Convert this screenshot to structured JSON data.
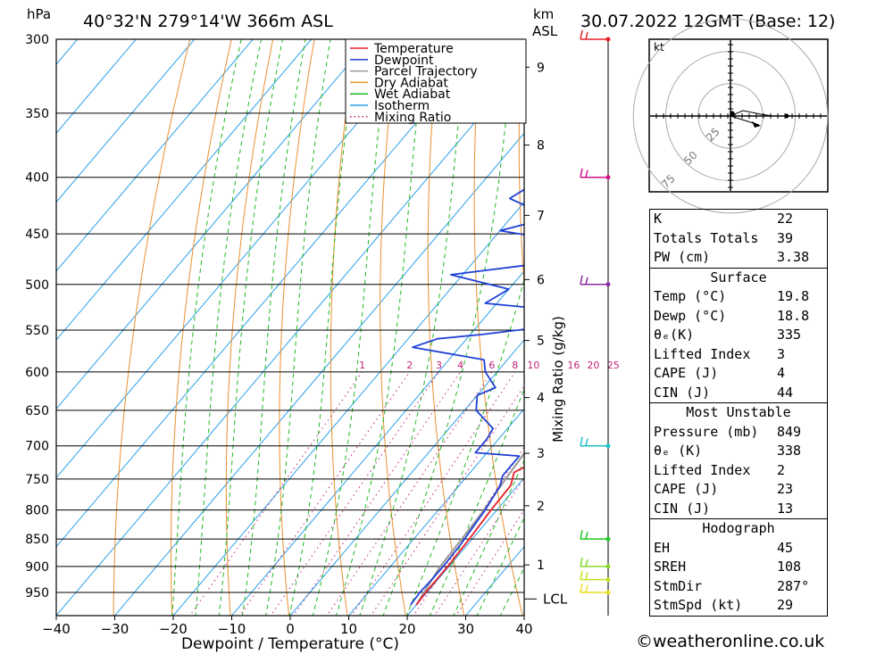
{
  "header": {
    "location": "40°32'N  279°14'W  366m  ASL",
    "datetime": "30.07.2022  12GMT  (Base: 12)",
    "hpa_label": "hPa",
    "km_label": "km",
    "asl_label": "ASL"
  },
  "chart_data": {
    "type": "line",
    "xlabel": "Dewpoint / Temperature (°C)",
    "y2label": "Mixing Ratio (g/kg)",
    "x_ticks": [
      -40,
      -30,
      -20,
      -10,
      0,
      10,
      20,
      30,
      40
    ],
    "x_tick_labels": [
      "−40",
      "−30",
      "−20",
      "−10",
      "0",
      "10",
      "20",
      "30",
      "40"
    ],
    "pressure_ticks": [
      300,
      350,
      400,
      450,
      500,
      550,
      600,
      650,
      700,
      750,
      800,
      850,
      900,
      950
    ],
    "km_ticks": [
      {
        "label": "9",
        "p": 318
      },
      {
        "label": "8",
        "p": 374
      },
      {
        "label": "7",
        "p": 433
      },
      {
        "label": "6",
        "p": 495
      },
      {
        "label": "5",
        "p": 562
      },
      {
        "label": "4",
        "p": 633
      },
      {
        "label": "3",
        "p": 711
      },
      {
        "label": "2",
        "p": 793
      },
      {
        "label": "1",
        "p": 897
      }
    ],
    "lcl_label": "LCL",
    "lcl_p": 963,
    "mixing_ratio_labels": [
      "1",
      "2",
      "3",
      "4",
      "6",
      "8",
      "10",
      "16",
      "20",
      "25"
    ],
    "legend": [
      {
        "name": "Temperature",
        "color": "#e8202a",
        "dash": "solid"
      },
      {
        "name": "Dewpoint",
        "color": "#1f3fd6",
        "dash": "solid"
      },
      {
        "name": "Parcel Trajectory",
        "color": "#999999",
        "dash": "solid"
      },
      {
        "name": "Dry Adiabat",
        "color": "#e89030",
        "dash": "solid"
      },
      {
        "name": "Wet Adiabat",
        "color": "#22b822",
        "dash": "solid"
      },
      {
        "name": "Isotherm",
        "color": "#2aa0e8",
        "dash": "solid"
      },
      {
        "name": "Mixing Ratio",
        "color": "#c0207a",
        "dash": "dotted"
      }
    ],
    "temperature": [
      [
        975,
        20.0
      ],
      [
        950,
        19.8
      ],
      [
        900,
        19.8
      ],
      [
        850,
        19.5
      ],
      [
        800,
        19.0
      ],
      [
        760,
        18.8
      ],
      [
        740,
        17.5
      ],
      [
        715,
        20.5
      ],
      [
        700,
        20.0
      ],
      [
        680,
        19.0
      ],
      [
        650,
        16.5
      ],
      [
        620,
        15.5
      ],
      [
        600,
        15.5
      ],
      [
        580,
        17.0
      ],
      [
        560,
        17.5
      ],
      [
        540,
        17.2
      ],
      [
        520,
        15.8
      ],
      [
        500,
        15.5
      ],
      [
        480,
        13.8
      ],
      [
        460,
        12.5
      ],
      [
        440,
        11.5
      ],
      [
        420,
        10.5
      ],
      [
        400,
        9.5
      ],
      [
        380,
        8.2
      ],
      [
        360,
        6.5
      ],
      [
        345,
        6.0
      ],
      [
        330,
        5.2
      ],
      [
        315,
        4.2
      ],
      [
        300,
        3.0
      ]
    ],
    "dewpoint": [
      [
        975,
        19.0
      ],
      [
        950,
        18.8
      ],
      [
        920,
        19.0
      ],
      [
        900,
        19.0
      ],
      [
        860,
        18.8
      ],
      [
        800,
        18.0
      ],
      [
        760,
        17.0
      ],
      [
        745,
        16.0
      ],
      [
        715,
        16.0
      ],
      [
        710,
        8.0
      ],
      [
        690,
        8.0
      ],
      [
        675,
        7.5
      ],
      [
        650,
        2.0
      ],
      [
        630,
        0.0
      ],
      [
        620,
        2.0
      ],
      [
        600,
        -2.0
      ],
      [
        585,
        -4.0
      ],
      [
        570,
        -18.0
      ],
      [
        560,
        -15.0
      ],
      [
        555,
        -8.0
      ],
      [
        545,
        3.0
      ],
      [
        535,
        -3.0
      ],
      [
        528,
        2.0
      ],
      [
        520,
        -12.0
      ],
      [
        505,
        -10.0
      ],
      [
        490,
        -22.0
      ],
      [
        480,
        -10.0
      ],
      [
        470,
        -5.0
      ],
      [
        465,
        -7.0
      ],
      [
        455,
        -10.0
      ],
      [
        447,
        -20.0
      ],
      [
        440,
        -16.0
      ],
      [
        430,
        -16.0
      ],
      [
        418,
        -23.0
      ],
      [
        405,
        -21.0
      ],
      [
        400,
        -15.0
      ],
      [
        398,
        -8.0
      ],
      [
        392,
        -12.0
      ],
      [
        385,
        -10.0
      ],
      [
        377,
        -11.0
      ],
      [
        370,
        -6.0
      ],
      [
        362,
        -4.0
      ],
      [
        350,
        -2.0
      ],
      [
        340,
        -4.0
      ],
      [
        330,
        -10.0
      ],
      [
        320,
        -30.0
      ],
      [
        310,
        -22.0
      ],
      [
        300,
        -15.0
      ]
    ],
    "parcel": [
      [
        975,
        20.0
      ],
      [
        950,
        19.5
      ],
      [
        900,
        18.5
      ],
      [
        850,
        18.2
      ],
      [
        800,
        17.8
      ],
      [
        750,
        17.0
      ],
      [
        700,
        16.3
      ],
      [
        650,
        15.2
      ],
      [
        600,
        13.8
      ],
      [
        550,
        11.8
      ],
      [
        500,
        8.8
      ],
      [
        450,
        4.8
      ],
      [
        400,
        -0.2
      ],
      [
        350,
        -6.5
      ],
      [
        320,
        -11.0
      ],
      [
        300,
        -14.0
      ]
    ],
    "indices": {
      "k_label": "K",
      "k": "22",
      "tt_label": "Totals Totals",
      "tt": "39",
      "pw_label": "PW (cm)",
      "pw": "3.38"
    },
    "surface": {
      "title": "Surface",
      "temp_label": "Temp (°C)",
      "temp": "19.8",
      "dewp_label": "Dewp (°C)",
      "dewp": "18.8",
      "theta_label": "θₑ(K)",
      "theta": "335",
      "li_label": "Lifted Index",
      "li": "3",
      "cape_label": "CAPE (J)",
      "cape": "4",
      "cin_label": "CIN (J)",
      "cin": "44"
    },
    "most_unstable": {
      "title": "Most Unstable",
      "pressure_label": "Pressure (mb)",
      "pressure": "849",
      "theta_label": "θₑ (K)",
      "theta": "338",
      "li_label": "Lifted Index",
      "li": "2",
      "cape_label": "CAPE (J)",
      "cape": "23",
      "cin_label": "CIN (J)",
      "cin": "13"
    },
    "hodograph": {
      "title": "Hodograph",
      "unit_label": "kt",
      "ring_labels": [
        "25",
        "50",
        "75"
      ],
      "eh_label": "EH",
      "eh": "45",
      "sreh_label": "SREH",
      "sreh": "108",
      "stmdir_label": "StmDir",
      "stmdir": "287°",
      "stmspd_label": "StmSpd (kt)",
      "stmspd": "29"
    },
    "wind_barb_pressures": [
      300,
      400,
      500,
      700,
      850,
      900,
      925,
      950
    ],
    "wind_barb_colors": [
      "#e8202a",
      "#d0108a",
      "#8a2aa0",
      "#20c0c8",
      "#22c822",
      "#8ad830",
      "#c8e020",
      "#e8e020"
    ]
  },
  "footer": {
    "credit": "©weatheronline.co.uk"
  }
}
